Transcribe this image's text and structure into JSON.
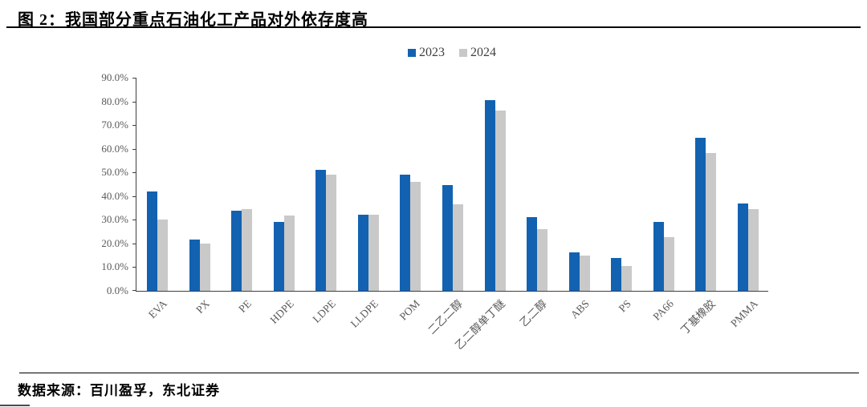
{
  "header": {
    "title": "图 2：我国部分重点石油化工产品对外依存度高"
  },
  "chart_data": {
    "type": "bar",
    "title": "图 2：我国部分重点石油化工产品对外依存度高",
    "categories": [
      "EVA",
      "PX",
      "PE",
      "HDPE",
      "LDPE",
      "LLDPE",
      "POM",
      "二乙二醇",
      "乙二醇单丁醚",
      "乙二醇",
      "ABS",
      "PS",
      "PA66",
      "丁基橡胶",
      "PMMA"
    ],
    "series": [
      {
        "name": "2023",
        "color": "#1262B1",
        "values": [
          42.0,
          21.5,
          33.8,
          29.0,
          51.2,
          32.2,
          49.2,
          44.5,
          80.5,
          31.0,
          16.2,
          14.0,
          29.2,
          64.5,
          37.0
        ]
      },
      {
        "name": "2024",
        "color": "#C9C9C9",
        "values": [
          30.0,
          20.0,
          34.4,
          31.8,
          49.2,
          32.0,
          46.0,
          36.6,
          76.2,
          26.0,
          14.8,
          10.5,
          22.8,
          58.2,
          34.5
        ]
      }
    ],
    "xlabel": "",
    "ylabel": "",
    "ylim": [
      0,
      90
    ],
    "yticks": [
      "0.0%",
      "10.0%",
      "20.0%",
      "30.0%",
      "40.0%",
      "50.0%",
      "60.0%",
      "70.0%",
      "80.0%",
      "90.0%"
    ],
    "grid": false,
    "legend_position": "top-center",
    "bar_unit": "percent"
  },
  "footer": {
    "source": "数据来源：百川盈孚，东北证券"
  },
  "colors": {
    "axis": "#3f3f3f",
    "tick_label": "#595959",
    "title_text": "#000000",
    "series_2023": "#1262B1",
    "series_2024": "#C9C9C9"
  }
}
